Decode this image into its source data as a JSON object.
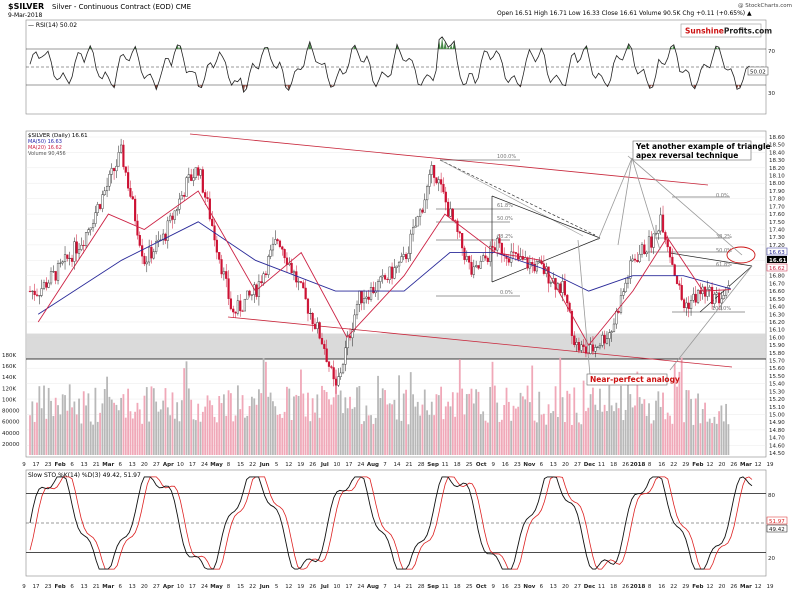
{
  "header": {
    "symbol": "$SILVER",
    "name": "Silver - Continuous Contract (EOD)  CME",
    "date": "9-Mar-2018",
    "quote": "Open 16.51  High 16.71  Low 16.33  Close 16.61  Volume 90.5K  Chg +0.11 (+0.65%) ▲",
    "copyright": "@ StockCharts.com",
    "brand_a": "Sunshine",
    "brand_b": "Profits",
    "brand_c": ".com"
  },
  "rsi": {
    "label": "RSI(14) 50.02",
    "current_label": "50.02",
    "levels": [
      70,
      50,
      30
    ],
    "level_labels": [
      "70",
      "30"
    ]
  },
  "price": {
    "legend": [
      "$SILVER (Daily) 16.61",
      "MA(50) 16.63",
      "MA(20) 16.62",
      "Volume 90,456"
    ],
    "legend_colors": [
      "#000000",
      "#2222aa",
      "#cc2244",
      "#555555"
    ],
    "last_labels": [
      "16.63",
      "16.61",
      "16.62"
    ],
    "axis_ticks": [
      "18.60",
      "18.50",
      "18.40",
      "18.30",
      "18.20",
      "18.10",
      "18.00",
      "17.90",
      "17.80",
      "17.70",
      "17.60",
      "17.50",
      "17.40",
      "17.30",
      "17.20",
      "17.10",
      "17.00",
      "16.90",
      "16.80",
      "16.70",
      "16.60",
      "16.50",
      "16.40",
      "16.30",
      "16.20",
      "16.10",
      "16.00",
      "15.90",
      "15.80",
      "15.70",
      "15.60",
      "15.50",
      "15.40",
      "15.30",
      "15.20",
      "15.10",
      "15.00",
      "14.90",
      "14.80",
      "14.70",
      "14.60",
      "14.50"
    ],
    "vol_ticks": [
      "180K",
      "160K",
      "140K",
      "120K",
      "100K",
      "80000",
      "60000",
      "40000",
      "20000"
    ],
    "fib_labels": [
      "100.0%",
      "61.8%",
      "50.0%",
      "38.2%",
      "0.0%",
      "0.0%",
      "38.2%",
      "50.0%",
      "61.8%",
      "100.0%"
    ]
  },
  "annotations": {
    "triangle_note_line1": "Yet another example of triangle",
    "triangle_note_line2": "apex reversal technique",
    "analogy_note": "Near-perfect analogy"
  },
  "sto": {
    "label": "Slow STO %K(14) %D(3) 49.42, 51.97",
    "label_k": "49.42",
    "label_d": "51.97",
    "levels": [
      80,
      50,
      20
    ],
    "level_labels": [
      "80",
      "20"
    ],
    "current_labels": [
      "51.97",
      "49.42"
    ]
  },
  "x_axis": {
    "labels": [
      "9",
      "17",
      "23",
      "Feb",
      "6",
      "13",
      "21",
      "Mar",
      "6",
      "13",
      "20",
      "27",
      "Apr",
      "10",
      "17",
      "24",
      "May",
      "8",
      "15",
      "22",
      "Jun",
      "5",
      "12",
      "19",
      "26",
      "Jul",
      "10",
      "17",
      "24",
      "Aug",
      "7",
      "14",
      "21",
      "28",
      "Sep",
      "11",
      "18",
      "25",
      "Oct",
      "9",
      "16",
      "23",
      "Nov",
      "6",
      "13",
      "20",
      "27",
      "Dec",
      "11",
      "18",
      "26",
      "2018",
      "8",
      "16",
      "22",
      "29",
      "Feb",
      "12",
      "20",
      "26",
      "Mar",
      "12",
      "19"
    ]
  },
  "chart_data": {
    "type": "candlestick",
    "title": "$SILVER Silver - Continuous Contract (EOD) CME",
    "date": "9-Mar-2018",
    "last_bar": {
      "open": 16.51,
      "high": 16.71,
      "low": 16.33,
      "close": 16.61,
      "volume": 90456,
      "change": 0.11,
      "change_pct": 0.65
    },
    "ma50_last": 16.63,
    "ma20_last": 16.62,
    "rsi14_last": 50.02,
    "sto_k_last": 49.42,
    "sto_d_last": 51.97,
    "price_range": [
      14.5,
      18.6
    ],
    "rsi_range": [
      0,
      100
    ],
    "sto_range": [
      0,
      100
    ],
    "grid": true,
    "close_series": {
      "dates": [
        "2017-01-09",
        "2017-01-23",
        "2017-02-06",
        "2017-02-21",
        "2017-03-01",
        "2017-03-15",
        "2017-03-27",
        "2017-04-10",
        "2017-04-17",
        "2017-04-24",
        "2017-05-08",
        "2017-05-22",
        "2017-06-05",
        "2017-06-19",
        "2017-07-03",
        "2017-07-10",
        "2017-07-24",
        "2017-08-07",
        "2017-08-21",
        "2017-09-01",
        "2017-09-08",
        "2017-09-18",
        "2017-10-02",
        "2017-10-16",
        "2017-10-30",
        "2017-11-13",
        "2017-11-27",
        "2017-12-04",
        "2017-12-12",
        "2017-12-26",
        "2018-01-08",
        "2018-01-22",
        "2018-01-25",
        "2018-02-08",
        "2018-02-20",
        "2018-03-01",
        "2018-03-09"
      ],
      "values": [
        16.6,
        16.9,
        17.3,
        18.0,
        18.4,
        17.0,
        17.3,
        18.0,
        18.2,
        17.6,
        16.3,
        16.6,
        17.3,
        16.6,
        15.9,
        15.3,
        16.5,
        16.7,
        17.0,
        17.7,
        18.2,
        17.6,
        16.8,
        17.2,
        17.0,
        16.9,
        16.6,
        15.9,
        15.8,
        16.1,
        17.0,
        17.3,
        17.6,
        16.4,
        16.6,
        16.5,
        16.61
      ]
    },
    "ma50_series": {
      "dates": [
        "2017-01-09",
        "2017-03-01",
        "2017-04-17",
        "2017-05-22",
        "2017-07-10",
        "2017-08-21",
        "2017-09-18",
        "2017-10-16",
        "2017-11-13",
        "2017-12-12",
        "2018-01-08",
        "2018-02-08",
        "2018-03-09"
      ],
      "values": [
        16.3,
        17.0,
        17.5,
        17.0,
        16.6,
        16.6,
        17.1,
        17.1,
        16.9,
        16.6,
        16.8,
        16.8,
        16.63
      ]
    },
    "ma20_series": {
      "dates": [
        "2017-01-09",
        "2017-02-21",
        "2017-03-15",
        "2017-04-17",
        "2017-05-22",
        "2017-06-19",
        "2017-07-17",
        "2017-08-21",
        "2017-09-15",
        "2017-10-16",
        "2017-11-13",
        "2017-12-12",
        "2018-01-08",
        "2018-01-29",
        "2018-02-20",
        "2018-03-09"
      ],
      "values": [
        16.2,
        17.6,
        17.4,
        17.9,
        16.6,
        17.1,
        16.0,
        16.8,
        17.6,
        17.1,
        17.0,
        15.9,
        16.6,
        17.3,
        16.6,
        16.62
      ]
    },
    "support_zone": [
      15.72,
      16.05
    ],
    "volume_range": [
      0,
      180000
    ]
  }
}
